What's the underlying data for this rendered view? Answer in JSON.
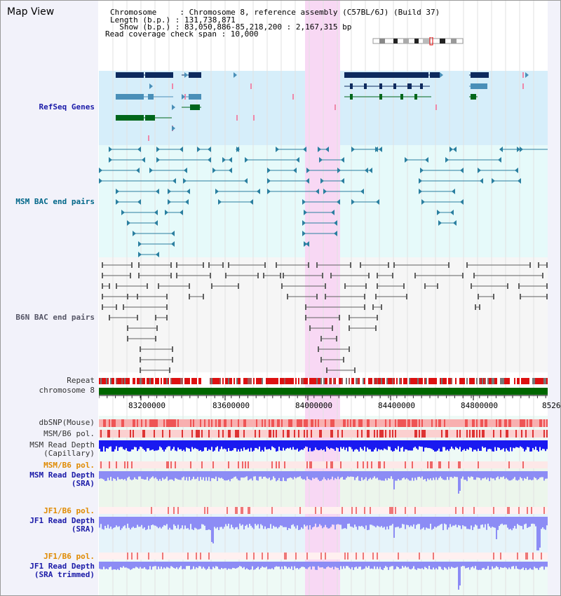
{
  "title": "Map View",
  "info": {
    "line1": "Chromosome     : Chromosome 8, reference assembly (C57BL/6J) (Build 37)",
    "line2": "Length (b.p.) : 131,738,871",
    "line3": "  Show (b.p.) : 83,050,886-85,218,200 : 2,167,315 bp",
    "line4": "Read coverage check span : 10,000"
  },
  "tracks": {
    "refseq": "RefSeq Genes",
    "msm_bac": "MSM BAC end pairs",
    "b6n_bac": "B6N BAC end pairs",
    "repeat": "Repeat",
    "chromosome": "chromosome 8",
    "dbsnp": "dbSNP(Mouse)",
    "msm_pol": "MSM/B6 pol.",
    "msm_depth_cap_1": "MSM Read Depth",
    "msm_depth_cap_2": "(Capillary)",
    "msm_pol_sra": "MSM/B6 pol.",
    "msm_depth_sra_1": "MSM Read Depth",
    "msm_depth_sra_2": "(SRA)",
    "jf1_pol": "JF1/B6 pol.",
    "jf1_depth_1": "JF1 Read Depth",
    "jf1_depth_2": "(SRA)",
    "jf1_pol_trim": "JF1/B6 pol.",
    "jf1_depth_trim_1": "JF1 Read Depth",
    "jf1_depth_trim_2": "(SRA trimmed)"
  },
  "axis_ticks": [
    "83200000",
    "83600000",
    "84000000",
    "84400000",
    "84800000",
    "8526"
  ],
  "colors": {
    "highlight": "#f8d8f4",
    "refseq_bg": "#d6eefa",
    "bac_bg": "#e6fafa",
    "gene_navy": "#0d2a5e",
    "gene_steel": "#4a8fb8",
    "gene_green": "#00661a",
    "bac_teal": "#2a7fa0",
    "bac_gray": "#606060",
    "chromosome": "#006600",
    "depth_blue": "#1a1af0",
    "depth_light": "#8c8cf5"
  }
}
